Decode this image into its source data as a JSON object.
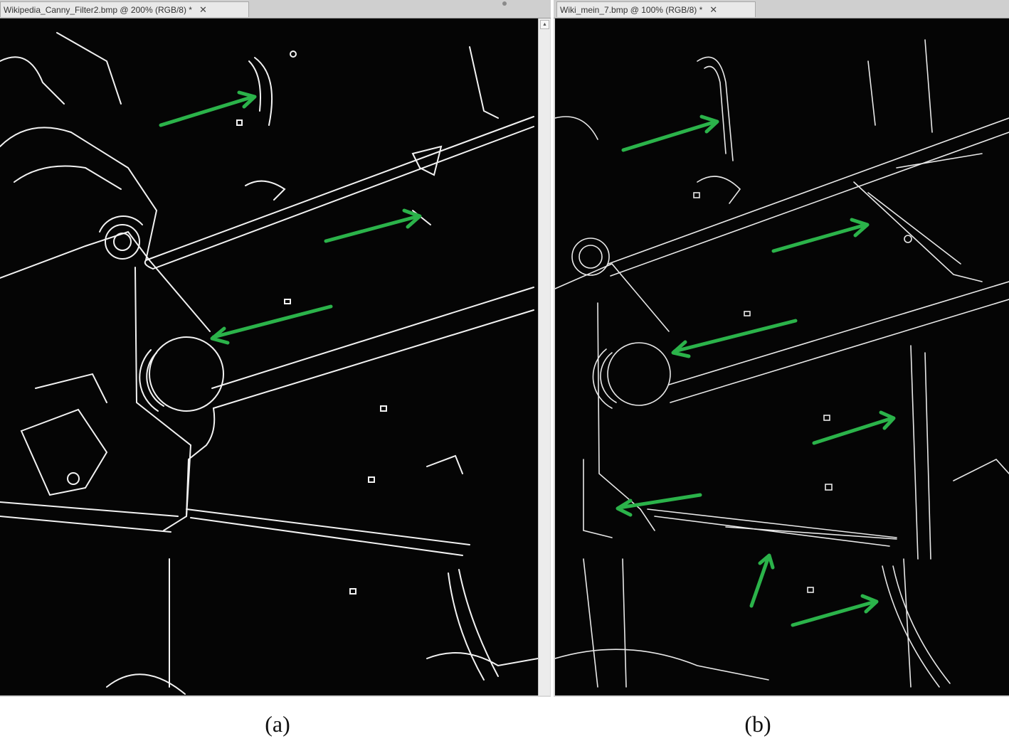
{
  "colors": {
    "canvas_bg": "#050505",
    "edge": "#f2f2f2",
    "arrow": "#2bb34a"
  },
  "window_a": {
    "tab_title": "Wikipedia_Canny_Filter2.bmp @ 200% (RGB/8) *",
    "close_icon": "close-icon"
  },
  "window_b": {
    "tab_title": "Wiki_mein_7.bmp @ 100% (RGB/8) *",
    "close_icon": "close-icon"
  },
  "captions": {
    "a": "(a)",
    "b": "(b)"
  },
  "close_glyph": "✕"
}
